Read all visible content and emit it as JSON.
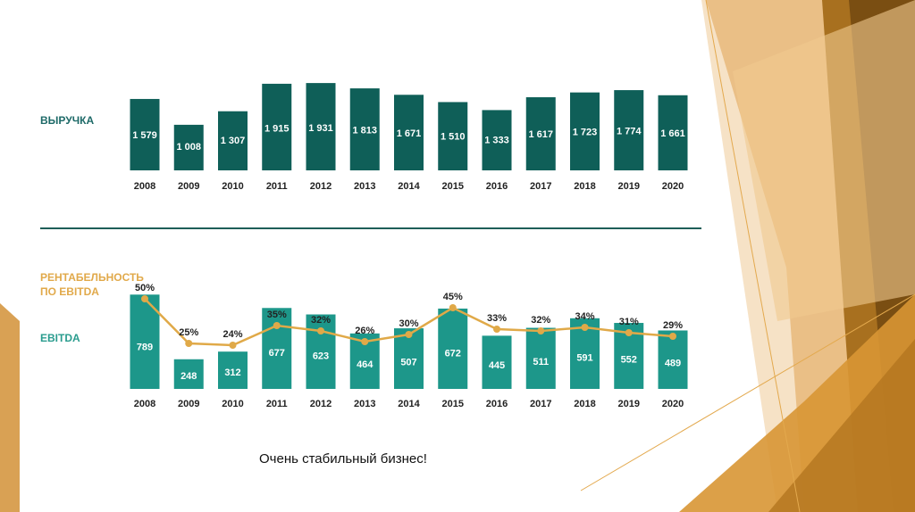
{
  "caption": "Очень стабильный бизнес!",
  "colors": {
    "revenue": "#0f5f58",
    "ebitda": "#1d978a",
    "margin": "#e0a948",
    "teal_label": "#1e6a68",
    "gold_label": "#e1a94a"
  },
  "chart_data": [
    {
      "type": "bar",
      "title": "ВЫРУЧКА",
      "categories": [
        "2008",
        "2009",
        "2010",
        "2011",
        "2012",
        "2013",
        "2014",
        "2015",
        "2016",
        "2017",
        "2018",
        "2019",
        "2020"
      ],
      "values": [
        1579,
        1008,
        1307,
        1915,
        1931,
        1813,
        1671,
        1510,
        1333,
        1617,
        1723,
        1774,
        1661
      ],
      "value_labels": [
        "1 579",
        "1 008",
        "1 307",
        "1 915",
        "1 931",
        "1 813",
        "1 671",
        "1 510",
        "1 333",
        "1 617",
        "1 723",
        "1 774",
        "1 661"
      ]
    },
    {
      "type": "bar+line",
      "series": [
        {
          "name": "EBITDA",
          "type": "bar",
          "values": [
            789,
            248,
            312,
            677,
            623,
            464,
            507,
            672,
            445,
            511,
            591,
            552,
            489
          ]
        },
        {
          "name": "РЕНТАБЕЛЬНОСТЬ ПО EBITDA",
          "type": "line",
          "unit": "%",
          "values": [
            50,
            25,
            24,
            35,
            32,
            26,
            30,
            45,
            33,
            32,
            34,
            31,
            29
          ]
        }
      ],
      "categories": [
        "2008",
        "2009",
        "2010",
        "2011",
        "2012",
        "2013",
        "2014",
        "2015",
        "2016",
        "2017",
        "2018",
        "2019",
        "2020"
      ],
      "labels": {
        "ebitda": "EBITDA",
        "margin_line1": "РЕНТАБЕЛЬНОСТЬ",
        "margin_line2": "ПО EBITDA"
      }
    }
  ]
}
